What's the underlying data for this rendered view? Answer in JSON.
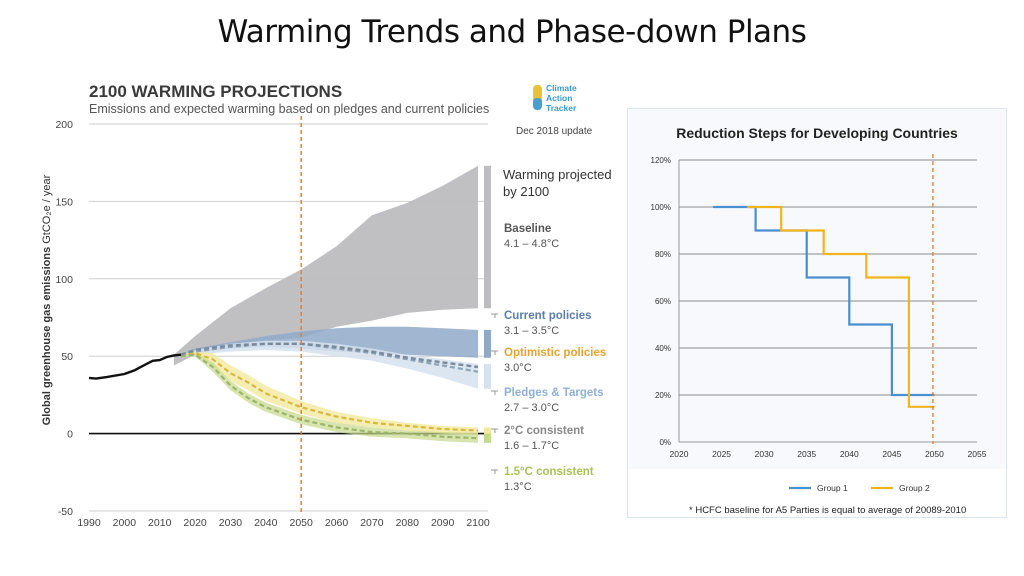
{
  "slide": {
    "title": "Warming Trends and Phase-down Plans"
  },
  "colors": {
    "baseline": "#bdbdbf",
    "current": "#8fa9c9",
    "pledges": "#d5e2ef",
    "optimistic": "#e9b43c",
    "two_deg": "#f3eaa0",
    "one_five": "#c7d98a",
    "history": "#111111",
    "marker": "#e07a2e",
    "group1": "#4a8fcf",
    "group2": "#f2b41c"
  },
  "chart_data": [
    {
      "type": "area",
      "title": "2100 WARMING PROJECTIONS",
      "subtitle": "Emissions and expected warming based on pledges and current policies",
      "ylabel": "Global greenhouse gas emissions GtCO2e / year",
      "ylabel_main": "Global greenhouse gas emissions",
      "ylabel_unit": "GtCO₂e / year",
      "xlabel": "",
      "xlim": [
        1990,
        2100
      ],
      "ylim": [
        -50,
        200
      ],
      "xticks": [
        1990,
        2000,
        2010,
        2020,
        2030,
        2040,
        2050,
        2060,
        2070,
        2080,
        2090,
        2100
      ],
      "yticks": [
        200,
        150,
        100,
        50,
        0,
        -50
      ],
      "logo": "Climate Action Tracker",
      "logo_lines": [
        "Climate",
        "Action",
        "Tracker"
      ],
      "update_note": "Dec 2018 update",
      "legend_heading": [
        "Warming projected",
        "by 2100"
      ],
      "marker_year": 2050,
      "history": {
        "x": [
          1990,
          1992,
          1995,
          2000,
          2003,
          2005,
          2008,
          2010,
          2012,
          2014,
          2016
        ],
        "y": [
          36,
          35.5,
          36.5,
          38.5,
          41,
          43.5,
          47,
          47.5,
          49.5,
          50.5,
          51
        ]
      },
      "series": [
        {
          "name": "Baseline",
          "range": "4.1 – 4.8°C",
          "kind": "band",
          "x": [
            2014,
            2020,
            2030,
            2040,
            2050,
            2060,
            2070,
            2080,
            2090,
            2100
          ],
          "lower": [
            44,
            51,
            57,
            60,
            62,
            69,
            73,
            78,
            80,
            81
          ],
          "upper": [
            51,
            63,
            81,
            94,
            106,
            121,
            141,
            149,
            160,
            173
          ]
        },
        {
          "name": "Current policies",
          "range": "3.1 – 3.5°C",
          "kind": "band",
          "x": [
            2016,
            2020,
            2030,
            2040,
            2050,
            2060,
            2070,
            2080,
            2090,
            2100
          ],
          "lower": [
            50,
            52,
            55,
            56,
            55,
            53,
            52,
            51,
            50,
            49
          ],
          "upper": [
            51,
            55,
            59,
            63,
            66,
            68,
            69,
            69,
            68,
            67
          ]
        },
        {
          "name": "Optimistic policies",
          "range": "3.0°C",
          "kind": "line",
          "x": [
            2016,
            2020,
            2030,
            2040,
            2050,
            2060,
            2070,
            2080,
            2090,
            2100
          ],
          "y": [
            51,
            54,
            57,
            58,
            58,
            56,
            53,
            49,
            46,
            43
          ]
        },
        {
          "name": "Pledges & Targets",
          "range": "2.7 – 3.0°C",
          "kind": "band",
          "x": [
            2016,
            2020,
            2030,
            2040,
            2050,
            2060,
            2070,
            2080,
            2090,
            2100
          ],
          "lower": [
            49,
            51,
            53,
            54,
            53,
            50,
            47,
            42,
            36,
            29
          ],
          "upper": [
            51,
            54,
            58,
            60,
            60,
            58,
            55,
            51,
            48,
            45
          ],
          "mid": [
            50,
            53,
            56,
            58,
            58,
            55,
            52,
            48,
            44,
            40
          ]
        },
        {
          "name": "2°C consistent",
          "range": "1.6 – 1.7°C",
          "kind": "band",
          "x": [
            2016,
            2020,
            2025,
            2030,
            2035,
            2040,
            2050,
            2060,
            2070,
            2080,
            2090,
            2100
          ],
          "lower": [
            50,
            51,
            44,
            34,
            28,
            21,
            13,
            7,
            4,
            2,
            0,
            -1
          ],
          "upper": [
            51,
            53,
            52,
            44,
            38,
            31,
            21,
            14,
            10,
            7,
            5,
            4
          ],
          "mid": [
            50,
            52,
            48,
            39,
            33,
            26,
            17,
            11,
            7,
            5,
            3,
            2
          ]
        },
        {
          "name": "1.5°C consistent",
          "range": "1.3°C",
          "kind": "band",
          "x": [
            2016,
            2020,
            2025,
            2030,
            2035,
            2040,
            2050,
            2060,
            2070,
            2080,
            2090,
            2100
          ],
          "lower": [
            50,
            50,
            40,
            28,
            20,
            14,
            6,
            1,
            -2,
            -3,
            -5,
            -6
          ],
          "upper": [
            51,
            52,
            46,
            34,
            26,
            20,
            12,
            7,
            4,
            2,
            1,
            0
          ],
          "mid": [
            50,
            51,
            43,
            31,
            23,
            17,
            9,
            4,
            1,
            0,
            -2,
            -3
          ]
        }
      ]
    },
    {
      "type": "line",
      "title": "Reduction Steps for Developing Countries",
      "xlim": [
        2020,
        2055
      ],
      "ylim": [
        0,
        120
      ],
      "xticks": [
        "2020",
        "2025",
        "2030",
        "2035",
        "2040",
        "2045",
        "2050",
        "2055"
      ],
      "xtick_values": [
        2020,
        2025,
        2030,
        2035,
        2040,
        2045,
        2050,
        2055
      ],
      "yticks": [
        "120%",
        "100%",
        "80%",
        "60%",
        "40%",
        "20%",
        "0%"
      ],
      "ytick_values": [
        120,
        100,
        80,
        60,
        40,
        20,
        0
      ],
      "marker_year": 2050,
      "series": [
        {
          "name": "Group 1",
          "x": [
            2024,
            2029,
            2029,
            2035,
            2035,
            2040,
            2040,
            2045,
            2045,
            2050
          ],
          "y": [
            100,
            100,
            90,
            90,
            70,
            70,
            50,
            50,
            20,
            20
          ]
        },
        {
          "name": "Group 2",
          "x": [
            2028,
            2032,
            2032,
            2037,
            2037,
            2042,
            2042,
            2047,
            2047,
            2050
          ],
          "y": [
            100,
            100,
            90,
            90,
            80,
            80,
            70,
            70,
            15,
            15
          ]
        }
      ],
      "footnote": "* HCFC baseline for A5 Parties is equal to average of 20089-2010"
    }
  ]
}
